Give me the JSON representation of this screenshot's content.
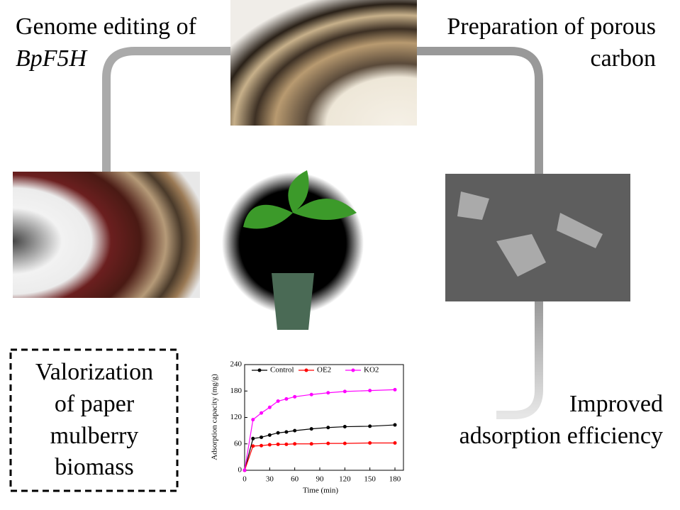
{
  "top_left_caption": [
    "Genome editing of",
    "BpF5H"
  ],
  "top_right_caption": [
    "Preparation of porous",
    "carbon"
  ],
  "bottom_right_caption": [
    "Improved",
    "adsorption efficiency"
  ],
  "box_caption": [
    "Valorization",
    "of paper",
    "mulberry",
    "biomass"
  ],
  "chart_data": {
    "type": "line",
    "x_label": "Time (min)",
    "y_label": "Adsorption capacity (mg/g)",
    "x": [
      0,
      10,
      20,
      30,
      40,
      50,
      60,
      80,
      100,
      120,
      150,
      180
    ],
    "series": [
      {
        "name": "Control",
        "color": "#000000",
        "values": [
          0,
          72,
          75,
          80,
          85,
          87,
          90,
          94,
          97,
          99,
          100,
          103
        ]
      },
      {
        "name": "OE2",
        "color": "#ff0000",
        "values": [
          0,
          55,
          56,
          58,
          59,
          59,
          60,
          60,
          61,
          61,
          62,
          62
        ]
      },
      {
        "name": "KO2",
        "color": "#ff00ff",
        "values": [
          0,
          115,
          130,
          143,
          157,
          162,
          167,
          172,
          176,
          179,
          181,
          183
        ]
      }
    ],
    "xlim": [
      0,
      180
    ],
    "xticks": [
      0,
      30,
      60,
      90,
      120,
      150,
      180
    ],
    "ylim": [
      0,
      240
    ],
    "yticks": [
      0,
      60,
      120,
      180,
      240
    ]
  }
}
